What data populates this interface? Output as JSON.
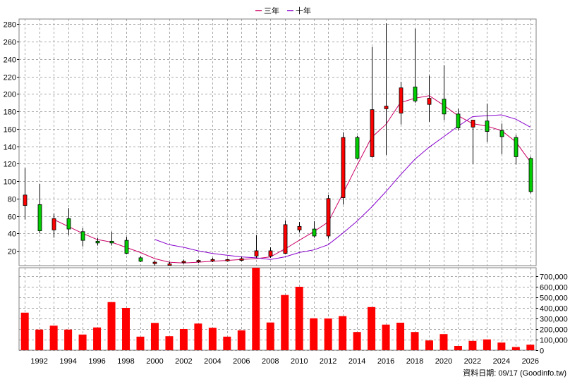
{
  "legend": [
    {
      "label": "三年",
      "color": "#cc0066"
    },
    {
      "label": "十年",
      "color": "#8800cc"
    }
  ],
  "footer": {
    "source": "資料日期: 09/17  (Goodinfo.tw)"
  },
  "colors": {
    "up": "#ff0000",
    "down": "#00cc00",
    "volume": "#ff0000",
    "ma3": "#cc0066",
    "ma10": "#8800cc"
  },
  "chart_data": [
    {
      "type": "candlestick",
      "x_ticks": [
        1992,
        1994,
        1996,
        1998,
        2000,
        2002,
        2004,
        2006,
        2008,
        2010,
        2012,
        2014,
        2016,
        2018,
        2020,
        2022,
        2024,
        2026
      ],
      "y_ticks": [
        20,
        40,
        60,
        80,
        100,
        120,
        140,
        160,
        180,
        200,
        220,
        240,
        260,
        280
      ],
      "ylim": [
        3,
        286
      ],
      "xlim": [
        1990.6,
        2026.4
      ],
      "grid": true,
      "legend_position": "top-center",
      "candles": [
        {
          "year": 1991,
          "open": 72,
          "high": 115,
          "low": 56,
          "close": 84
        },
        {
          "year": 1992,
          "open": 73,
          "high": 97,
          "low": 40,
          "close": 43
        },
        {
          "year": 1993,
          "open": 44,
          "high": 63,
          "low": 35,
          "close": 57
        },
        {
          "year": 1994,
          "open": 57,
          "high": 69,
          "low": 38,
          "close": 45
        },
        {
          "year": 1995,
          "open": 42,
          "high": 46,
          "low": 25,
          "close": 32
        },
        {
          "year": 1996,
          "open": 31,
          "high": 35,
          "low": 26,
          "close": 29
        },
        {
          "year": 1997,
          "open": 31,
          "high": 42,
          "low": 26,
          "close": 29
        },
        {
          "year": 1998,
          "open": 32,
          "high": 36,
          "low": 16,
          "close": 17
        },
        {
          "year": 1999,
          "open": 12,
          "high": 14,
          "low": 7,
          "close": 8
        },
        {
          "year": 2000,
          "open": 6,
          "high": 9,
          "low": 3,
          "close": 7
        },
        {
          "year": 2001,
          "open": 5,
          "high": 7,
          "low": 4,
          "close": 5
        },
        {
          "year": 2002,
          "open": 7,
          "high": 10,
          "low": 5,
          "close": 8
        },
        {
          "year": 2003,
          "open": 8,
          "high": 10,
          "low": 6,
          "close": 9
        },
        {
          "year": 2004,
          "open": 9,
          "high": 12,
          "low": 7,
          "close": 10
        },
        {
          "year": 2005,
          "open": 10,
          "high": 11,
          "low": 8,
          "close": 10
        },
        {
          "year": 2006,
          "open": 9,
          "high": 13,
          "low": 8,
          "close": 11
        },
        {
          "year": 2007,
          "open": 14,
          "high": 38,
          "low": 12,
          "close": 20
        },
        {
          "year": 2008,
          "open": 14,
          "high": 24,
          "low": 12,
          "close": 20
        },
        {
          "year": 2009,
          "open": 17,
          "high": 55,
          "low": 16,
          "close": 50
        },
        {
          "year": 2010,
          "open": 44,
          "high": 53,
          "low": 41,
          "close": 48
        },
        {
          "year": 2011,
          "open": 45,
          "high": 54,
          "low": 35,
          "close": 37
        },
        {
          "year": 2012,
          "open": 37,
          "high": 84,
          "low": 34,
          "close": 80
        },
        {
          "year": 2013,
          "open": 81,
          "high": 156,
          "low": 73,
          "close": 150
        },
        {
          "year": 2014,
          "open": 150,
          "high": 152,
          "low": 125,
          "close": 126
        },
        {
          "year": 2015,
          "open": 128,
          "high": 254,
          "low": 127,
          "close": 182
        },
        {
          "year": 2016,
          "open": 183,
          "high": 281,
          "low": 130,
          "close": 186
        },
        {
          "year": 2017,
          "open": 178,
          "high": 214,
          "low": 165,
          "close": 207
        },
        {
          "year": 2018,
          "open": 208,
          "high": 275,
          "low": 190,
          "close": 192
        },
        {
          "year": 2019,
          "open": 188,
          "high": 221,
          "low": 168,
          "close": 195
        },
        {
          "year": 2020,
          "open": 194,
          "high": 233,
          "low": 170,
          "close": 177
        },
        {
          "year": 2021,
          "open": 177,
          "high": 183,
          "low": 158,
          "close": 161
        },
        {
          "year": 2022,
          "open": 162,
          "high": 170,
          "low": 120,
          "close": 170
        },
        {
          "year": 2023,
          "open": 169,
          "high": 189,
          "low": 145,
          "close": 157
        },
        {
          "year": 2024,
          "open": 158,
          "high": 166,
          "low": 131,
          "close": 151
        },
        {
          "year": 2025,
          "open": 150,
          "high": 153,
          "low": 119,
          "close": 128
        },
        {
          "year": 2026,
          "open": 126,
          "high": 128,
          "low": 86,
          "close": 88
        }
      ],
      "series": [
        {
          "name": "三年",
          "points": [
            [
              1993,
              56
            ],
            [
              1994,
              48
            ],
            [
              1995,
              40
            ],
            [
              1996,
              33
            ],
            [
              1997,
              30
            ],
            [
              1998,
              24
            ],
            [
              1999,
              18
            ],
            [
              2000,
              11
            ],
            [
              2001,
              7
            ],
            [
              2002,
              6
            ],
            [
              2003,
              7
            ],
            [
              2004,
              8
            ],
            [
              2005,
              9
            ],
            [
              2006,
              10
            ],
            [
              2007,
              11
            ],
            [
              2008,
              13
            ],
            [
              2009,
              22
            ],
            [
              2010,
              32
            ],
            [
              2011,
              42
            ],
            [
              2012,
              53
            ],
            [
              2013,
              85
            ],
            [
              2014,
              118
            ],
            [
              2015,
              150
            ],
            [
              2016,
              165
            ],
            [
              2017,
              190
            ],
            [
              2018,
              195
            ],
            [
              2019,
              198
            ],
            [
              2020,
              187
            ],
            [
              2021,
              175
            ],
            [
              2022,
              166
            ],
            [
              2023,
              163
            ],
            [
              2024,
              158
            ],
            [
              2025,
              145
            ],
            [
              2026,
              122
            ]
          ]
        },
        {
          "name": "十年",
          "points": [
            [
              2000,
              33
            ],
            [
              2001,
              27
            ],
            [
              2002,
              24
            ],
            [
              2003,
              20
            ],
            [
              2004,
              17
            ],
            [
              2005,
              15
            ],
            [
              2006,
              13
            ],
            [
              2007,
              12
            ],
            [
              2008,
              10
            ],
            [
              2009,
              13
            ],
            [
              2010,
              18
            ],
            [
              2011,
              21
            ],
            [
              2012,
              27
            ],
            [
              2013,
              40
            ],
            [
              2014,
              54
            ],
            [
              2015,
              70
            ],
            [
              2016,
              88
            ],
            [
              2017,
              107
            ],
            [
              2018,
              125
            ],
            [
              2019,
              139
            ],
            [
              2020,
              151
            ],
            [
              2021,
              163
            ],
            [
              2022,
              174
            ],
            [
              2023,
              175
            ],
            [
              2024,
              176
            ],
            [
              2025,
              171
            ],
            [
              2026,
              162
            ]
          ]
        }
      ]
    },
    {
      "type": "bar",
      "title": "",
      "y_ticks_labels": [
        "0",
        "100,000",
        "200,000",
        "300,000",
        "400,000",
        "500,000",
        "600,000",
        "700,000"
      ],
      "y_ticks": [
        0,
        100000,
        200000,
        300000,
        400000,
        500000,
        600000,
        700000
      ],
      "ylim": [
        0,
        780000
      ],
      "grid": true,
      "x": [
        1991,
        1992,
        1993,
        1994,
        1995,
        1996,
        1997,
        1998,
        1999,
        2000,
        2001,
        2002,
        2003,
        2004,
        2005,
        2006,
        2007,
        2008,
        2009,
        2010,
        2011,
        2012,
        2013,
        2014,
        2015,
        2016,
        2017,
        2018,
        2019,
        2020,
        2021,
        2022,
        2023,
        2024,
        2025,
        2026
      ],
      "values": [
        355000,
        195000,
        232000,
        195000,
        148000,
        215000,
        455000,
        400000,
        128000,
        258000,
        132000,
        200000,
        252000,
        212000,
        128000,
        188000,
        790000,
        262000,
        522000,
        600000,
        302000,
        300000,
        322000,
        172000,
        408000,
        242000,
        260000,
        172000,
        92000,
        152000,
        40000,
        88000,
        102000,
        72000,
        30000,
        52000
      ]
    }
  ]
}
